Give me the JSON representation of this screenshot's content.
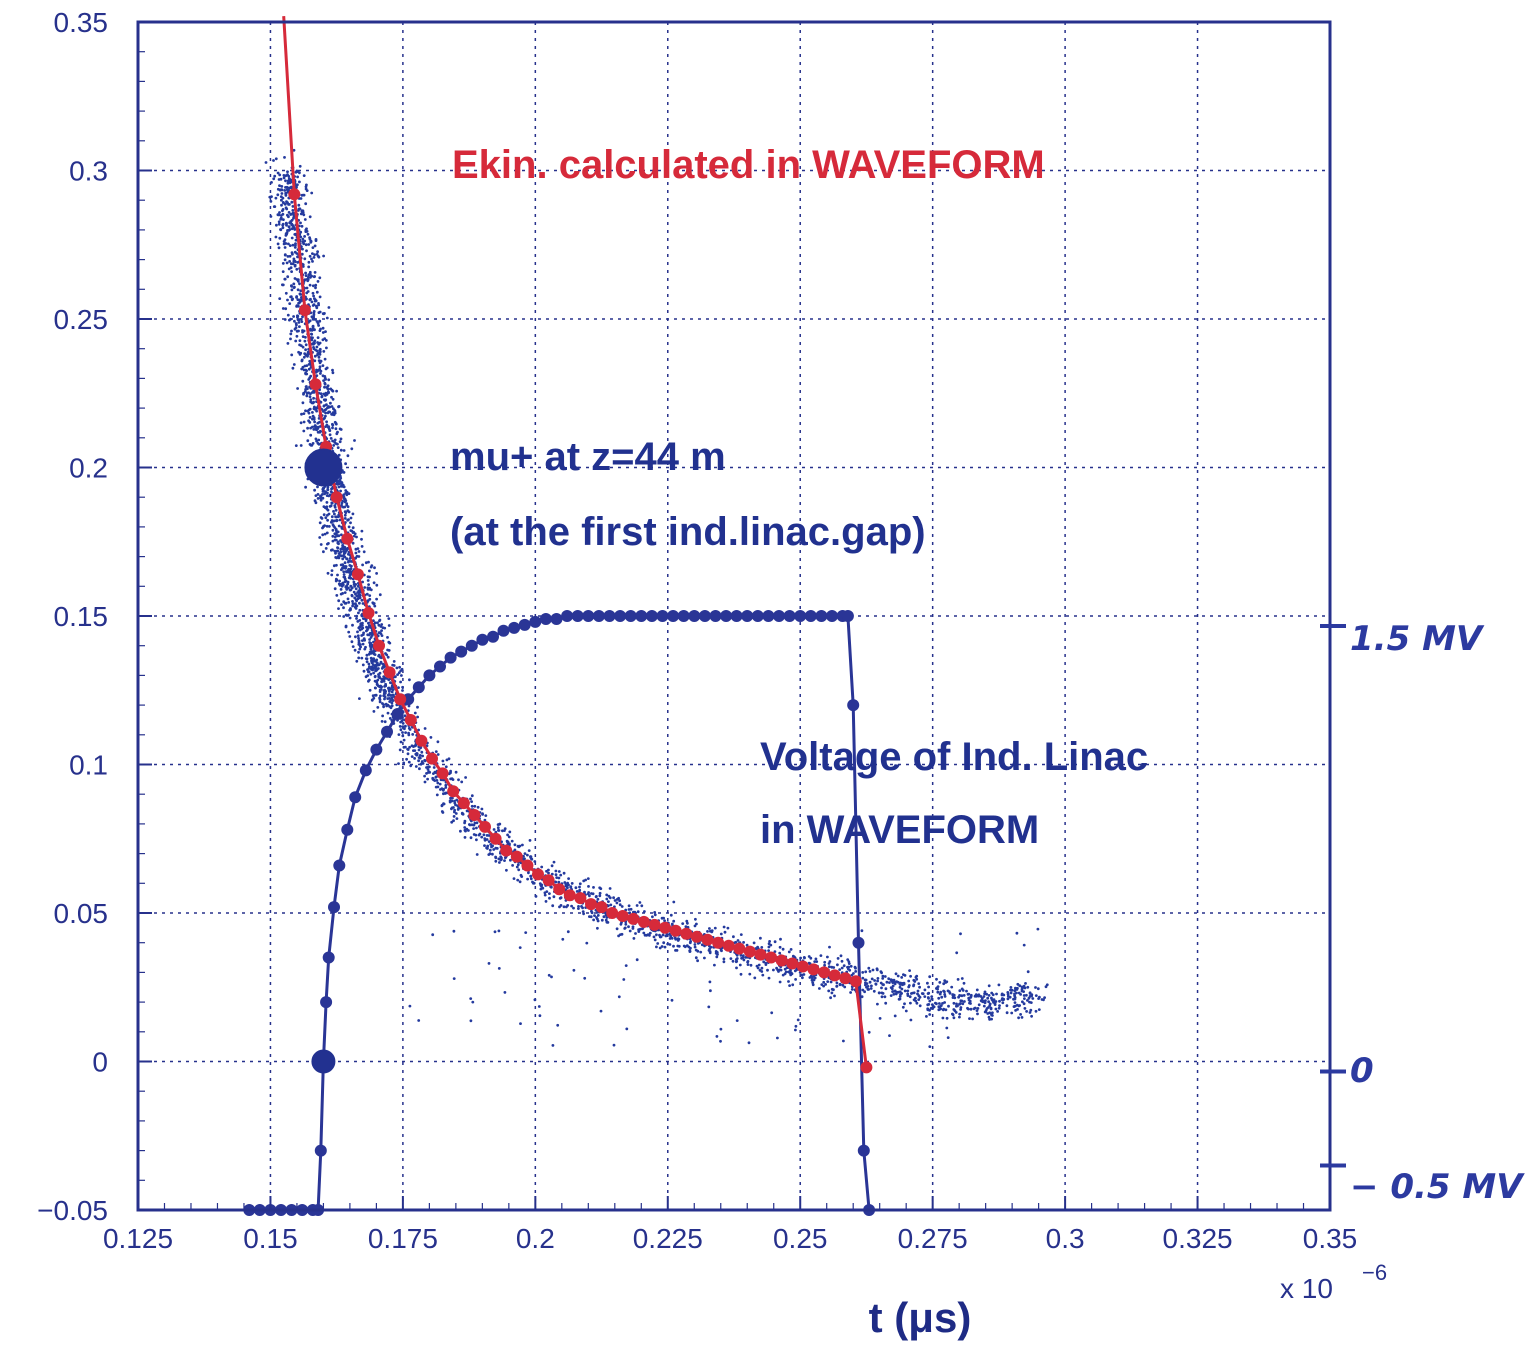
{
  "chart_data": {
    "type": "scatter",
    "xlabel": "t (μs)",
    "x_exponent_label": "x 10",
    "x_exponent_power": "−6",
    "xlim": [
      0.125,
      0.35
    ],
    "ylim": [
      -0.05,
      0.35
    ],
    "x_ticks": [
      "0.125",
      "0.15",
      "0.175",
      "0.2",
      "0.225",
      "0.25",
      "0.275",
      "0.3",
      "0.325",
      "0.35"
    ],
    "y_ticks": [
      "0.35",
      "0.3",
      "0.25",
      "0.2",
      "0.15",
      "0.1",
      "0.05",
      "0",
      "−0.05"
    ],
    "grid": true,
    "colors": {
      "axes": "#27318c",
      "ekin": "#d62a3a",
      "voltage": "#2a3596",
      "particles": "#243a9e"
    },
    "annotations": {
      "ekin": "Ekin. calculated in WAVEFORM",
      "mu_line1": "mu+ at z=44 m",
      "mu_line2": "(at the first ind.linac.gap)",
      "volt_line1": "Voltage of Ind. Linac",
      "volt_line2": "in WAVEFORM"
    },
    "right_axis_labels": [
      "1.5 MV",
      "0",
      "− 0.5 MV"
    ],
    "series": [
      {
        "name": "Ekin. calculated in WAVEFORM",
        "marker": "dot",
        "x": [
          0.1525,
          0.1545,
          0.1565,
          0.1585,
          0.1605,
          0.1625,
          0.1645,
          0.1665,
          0.1685,
          0.1705,
          0.1725,
          0.1745,
          0.1765,
          0.1785,
          0.1805,
          0.1825,
          0.1845,
          0.1865,
          0.1885,
          0.1905,
          0.1925,
          0.1945,
          0.1965,
          0.1985,
          0.2005,
          0.2025,
          0.2045,
          0.2065,
          0.2085,
          0.2105,
          0.2125,
          0.2145,
          0.2165,
          0.2185,
          0.2205,
          0.2225,
          0.2245,
          0.2265,
          0.2285,
          0.2305,
          0.2325,
          0.2345,
          0.2365,
          0.2385,
          0.2405,
          0.2425,
          0.2445,
          0.2465,
          0.2485,
          0.2505,
          0.2525,
          0.2545,
          0.2565,
          0.2585,
          0.2605,
          0.2625
        ],
        "y": [
          0.352,
          0.292,
          0.253,
          0.228,
          0.207,
          0.19,
          0.176,
          0.164,
          0.151,
          0.14,
          0.131,
          0.122,
          0.115,
          0.108,
          0.102,
          0.097,
          0.091,
          0.087,
          0.083,
          0.079,
          0.075,
          0.071,
          0.069,
          0.066,
          0.063,
          0.061,
          0.058,
          0.056,
          0.055,
          0.053,
          0.052,
          0.05,
          0.049,
          0.048,
          0.047,
          0.046,
          0.045,
          0.044,
          0.043,
          0.042,
          0.041,
          0.04,
          0.039,
          0.038,
          0.037,
          0.036,
          0.035,
          0.034,
          0.033,
          0.032,
          0.031,
          0.03,
          0.029,
          0.028,
          0.027,
          -0.002
        ]
      },
      {
        "name": "Voltage of Ind. Linac in WAVEFORM",
        "marker": "circle",
        "x": [
          0.146,
          0.148,
          0.15,
          0.152,
          0.154,
          0.156,
          0.158,
          0.159,
          0.1595,
          0.16,
          0.1605,
          0.161,
          0.162,
          0.163,
          0.1645,
          0.166,
          0.168,
          0.17,
          0.172,
          0.174,
          0.176,
          0.178,
          0.18,
          0.182,
          0.184,
          0.186,
          0.188,
          0.19,
          0.192,
          0.194,
          0.196,
          0.198,
          0.2,
          0.202,
          0.204,
          0.206,
          0.208,
          0.21,
          0.212,
          0.214,
          0.216,
          0.218,
          0.22,
          0.222,
          0.224,
          0.226,
          0.228,
          0.23,
          0.232,
          0.234,
          0.236,
          0.238,
          0.24,
          0.242,
          0.244,
          0.246,
          0.248,
          0.25,
          0.252,
          0.254,
          0.256,
          0.258,
          0.259,
          0.26,
          0.261,
          0.262,
          0.263
        ],
        "y": [
          -0.05,
          -0.05,
          -0.05,
          -0.05,
          -0.05,
          -0.05,
          -0.05,
          -0.05,
          -0.03,
          0.0,
          0.02,
          0.035,
          0.052,
          0.066,
          0.078,
          0.089,
          0.098,
          0.105,
          0.111,
          0.117,
          0.122,
          0.126,
          0.13,
          0.133,
          0.136,
          0.138,
          0.14,
          0.142,
          0.143,
          0.145,
          0.146,
          0.147,
          0.148,
          0.149,
          0.149,
          0.15,
          0.15,
          0.15,
          0.15,
          0.15,
          0.15,
          0.15,
          0.15,
          0.15,
          0.15,
          0.15,
          0.15,
          0.15,
          0.15,
          0.15,
          0.15,
          0.15,
          0.15,
          0.15,
          0.15,
          0.15,
          0.15,
          0.15,
          0.15,
          0.15,
          0.15,
          0.15,
          0.15,
          0.12,
          0.04,
          -0.03,
          -0.05
        ]
      },
      {
        "name": "mu+ at z=44 m (at the first ind.linac.gap)",
        "marker": "small-dot",
        "band": [
          {
            "x": 0.153,
            "y": 0.3
          },
          {
            "x": 0.155,
            "y": 0.275
          },
          {
            "x": 0.157,
            "y": 0.25
          },
          {
            "x": 0.159,
            "y": 0.225
          },
          {
            "x": 0.161,
            "y": 0.2
          },
          {
            "x": 0.163,
            "y": 0.18
          },
          {
            "x": 0.166,
            "y": 0.16
          },
          {
            "x": 0.169,
            "y": 0.14
          },
          {
            "x": 0.173,
            "y": 0.122
          },
          {
            "x": 0.178,
            "y": 0.105
          },
          {
            "x": 0.184,
            "y": 0.09
          },
          {
            "x": 0.19,
            "y": 0.078
          },
          {
            "x": 0.198,
            "y": 0.066
          },
          {
            "x": 0.206,
            "y": 0.057
          },
          {
            "x": 0.215,
            "y": 0.05
          },
          {
            "x": 0.225,
            "y": 0.044
          },
          {
            "x": 0.235,
            "y": 0.039
          },
          {
            "x": 0.245,
            "y": 0.034
          },
          {
            "x": 0.255,
            "y": 0.03
          },
          {
            "x": 0.265,
            "y": 0.026
          },
          {
            "x": 0.275,
            "y": 0.022
          },
          {
            "x": 0.285,
            "y": 0.02
          },
          {
            "x": 0.295,
            "y": 0.022
          }
        ]
      }
    ],
    "markers": [
      {
        "name": "mu-reference-point",
        "x": 0.16,
        "y": 0.2
      },
      {
        "name": "voltage-zero-point",
        "x": 0.16,
        "y": 0.0
      }
    ]
  }
}
